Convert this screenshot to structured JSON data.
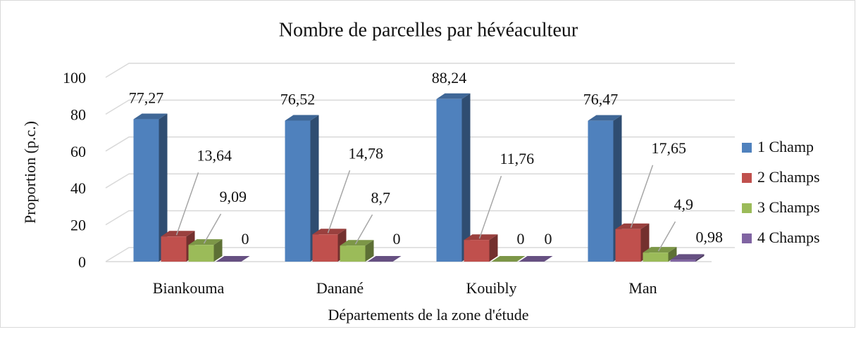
{
  "chart_data": {
    "type": "bar3d",
    "title": "Nombre de parcelles par hévéaculteur",
    "x_label": "Départements de la zone d'étude",
    "y_label": "Proportion (p.c.)",
    "categories": [
      "Biankouma",
      "Danané",
      "Kouibly",
      "Man"
    ],
    "series": [
      {
        "name": "1 Champ",
        "color": "#4f81bd",
        "values": [
          77.27,
          76.52,
          88.24,
          76.47
        ],
        "value_labels": [
          "77,27",
          "76,52",
          "88,24",
          "76,47"
        ]
      },
      {
        "name": "2 Champs",
        "color": "#c0504d",
        "values": [
          13.64,
          14.78,
          11.76,
          17.65
        ],
        "value_labels": [
          "13,64",
          "14,78",
          "11,76",
          "17,65"
        ]
      },
      {
        "name": "3 Champs",
        "color": "#9bbb59",
        "values": [
          9.09,
          8.7,
          0,
          4.9
        ],
        "value_labels": [
          "9,09",
          "8,7",
          "0",
          "4,9"
        ]
      },
      {
        "name": "4 Champs",
        "color": "#8064a2",
        "values": [
          0,
          0,
          0,
          0.98
        ],
        "value_labels": [
          "0",
          "0",
          "0",
          "0,98"
        ]
      }
    ],
    "ylim": [
      0,
      100
    ],
    "yticks": [
      0,
      20,
      40,
      60,
      80,
      100
    ],
    "grid": true,
    "legend": "right"
  }
}
